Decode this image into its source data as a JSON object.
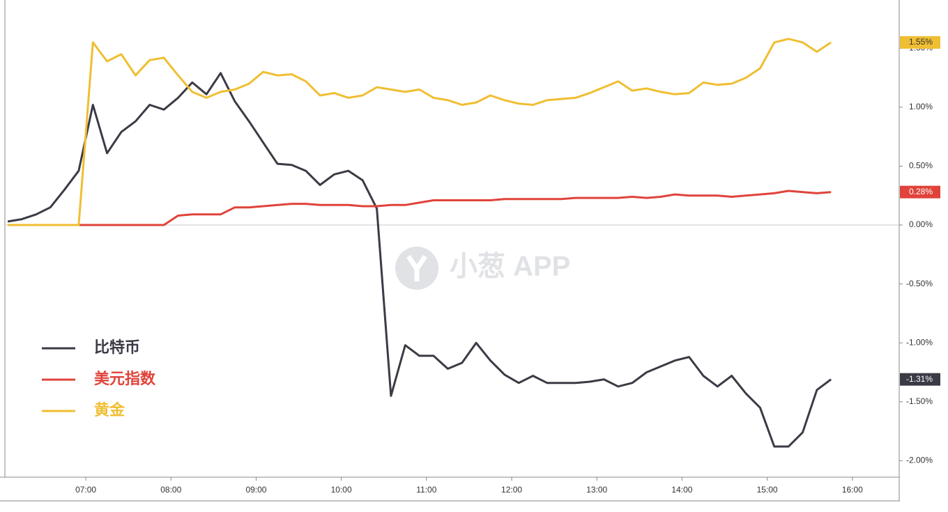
{
  "chart_data": {
    "type": "line",
    "watermark": "小葱 APP",
    "x": [
      "06:05",
      "06:15",
      "06:25",
      "06:35",
      "06:45",
      "06:55",
      "07:05",
      "07:15",
      "07:25",
      "07:35",
      "07:45",
      "07:55",
      "08:05",
      "08:15",
      "08:25",
      "08:35",
      "08:45",
      "08:55",
      "09:05",
      "09:15",
      "09:25",
      "09:35",
      "09:45",
      "09:55",
      "10:05",
      "10:15",
      "10:25",
      "10:35",
      "10:45",
      "10:55",
      "11:05",
      "11:15",
      "11:25",
      "11:35",
      "11:45",
      "11:55",
      "12:05",
      "12:15",
      "12:25",
      "12:35",
      "12:45",
      "12:55",
      "13:05",
      "13:15",
      "13:25",
      "13:35",
      "13:45",
      "13:55",
      "14:05",
      "14:15",
      "14:25",
      "14:35",
      "14:45",
      "14:55",
      "15:05",
      "15:15",
      "15:25",
      "15:35",
      "15:45"
    ],
    "xlim": [
      "06:03",
      "16:33"
    ],
    "xticks": [
      "07:00",
      "08:00",
      "09:00",
      "10:00",
      "11:00",
      "12:00",
      "13:00",
      "14:00",
      "15:00",
      "16:00"
    ],
    "ylim": [
      -2.14,
      1.91
    ],
    "yticks": [
      {
        "value": -2,
        "label": "-2.00%"
      },
      {
        "value": -1.5,
        "label": "-1.50%"
      },
      {
        "value": -1,
        "label": "-1.00%"
      },
      {
        "value": -0.5,
        "label": "-0.50%"
      },
      {
        "value": 0,
        "label": "0.00%"
      },
      {
        "value": 0.5,
        "label": "0.50%"
      },
      {
        "value": 1,
        "label": "1.00%"
      },
      {
        "value": 1.5,
        "label": "1.50%"
      }
    ],
    "series": [
      {
        "name": "比特币",
        "color": "#3a3b45",
        "last_label": "-1.31%",
        "values": [
          0.03,
          0.05,
          0.09,
          0.15,
          0.3,
          0.46,
          1.02,
          0.61,
          0.79,
          0.88,
          1.02,
          0.98,
          1.08,
          1.21,
          1.11,
          1.29,
          1.05,
          0.88,
          0.7,
          0.52,
          0.51,
          0.46,
          0.34,
          0.43,
          0.46,
          0.38,
          0.14,
          -1.45,
          -1.02,
          -1.11,
          -1.11,
          -1.22,
          -1.17,
          -1.0,
          -1.15,
          -1.27,
          -1.34,
          -1.28,
          -1.34,
          -1.34,
          -1.34,
          -1.33,
          -1.31,
          -1.37,
          -1.34,
          -1.25,
          -1.2,
          -1.15,
          -1.12,
          -1.28,
          -1.37,
          -1.28,
          -1.43,
          -1.55,
          -1.88,
          -1.88,
          -1.76,
          -1.4,
          -1.31
        ]
      },
      {
        "name": "美元指数",
        "color": "#e0433a",
        "last_label": "0.28%",
        "values": [
          0,
          0,
          0,
          0,
          0,
          0,
          0,
          0,
          0,
          0,
          0,
          0,
          0.08,
          0.09,
          0.09,
          0.09,
          0.15,
          0.15,
          0.16,
          0.17,
          0.18,
          0.18,
          0.17,
          0.17,
          0.17,
          0.16,
          0.16,
          0.17,
          0.17,
          0.19,
          0.21,
          0.21,
          0.21,
          0.21,
          0.21,
          0.22,
          0.22,
          0.22,
          0.22,
          0.22,
          0.23,
          0.23,
          0.23,
          0.23,
          0.24,
          0.23,
          0.24,
          0.26,
          0.25,
          0.25,
          0.25,
          0.24,
          0.25,
          0.26,
          0.27,
          0.29,
          0.28,
          0.27,
          0.28
        ]
      },
      {
        "name": "黄金",
        "color": "#f0be32",
        "last_label": "1.55%",
        "values": [
          0,
          0,
          0,
          0,
          0,
          0,
          1.55,
          1.39,
          1.45,
          1.27,
          1.4,
          1.42,
          1.27,
          1.13,
          1.08,
          1.13,
          1.15,
          1.2,
          1.3,
          1.27,
          1.28,
          1.22,
          1.1,
          1.12,
          1.08,
          1.1,
          1.17,
          1.15,
          1.13,
          1.15,
          1.08,
          1.06,
          1.02,
          1.04,
          1.1,
          1.06,
          1.03,
          1.02,
          1.06,
          1.07,
          1.08,
          1.12,
          1.17,
          1.22,
          1.14,
          1.16,
          1.13,
          1.11,
          1.12,
          1.21,
          1.19,
          1.2,
          1.25,
          1.33,
          1.55,
          1.58,
          1.55,
          1.47,
          1.55
        ]
      }
    ]
  }
}
